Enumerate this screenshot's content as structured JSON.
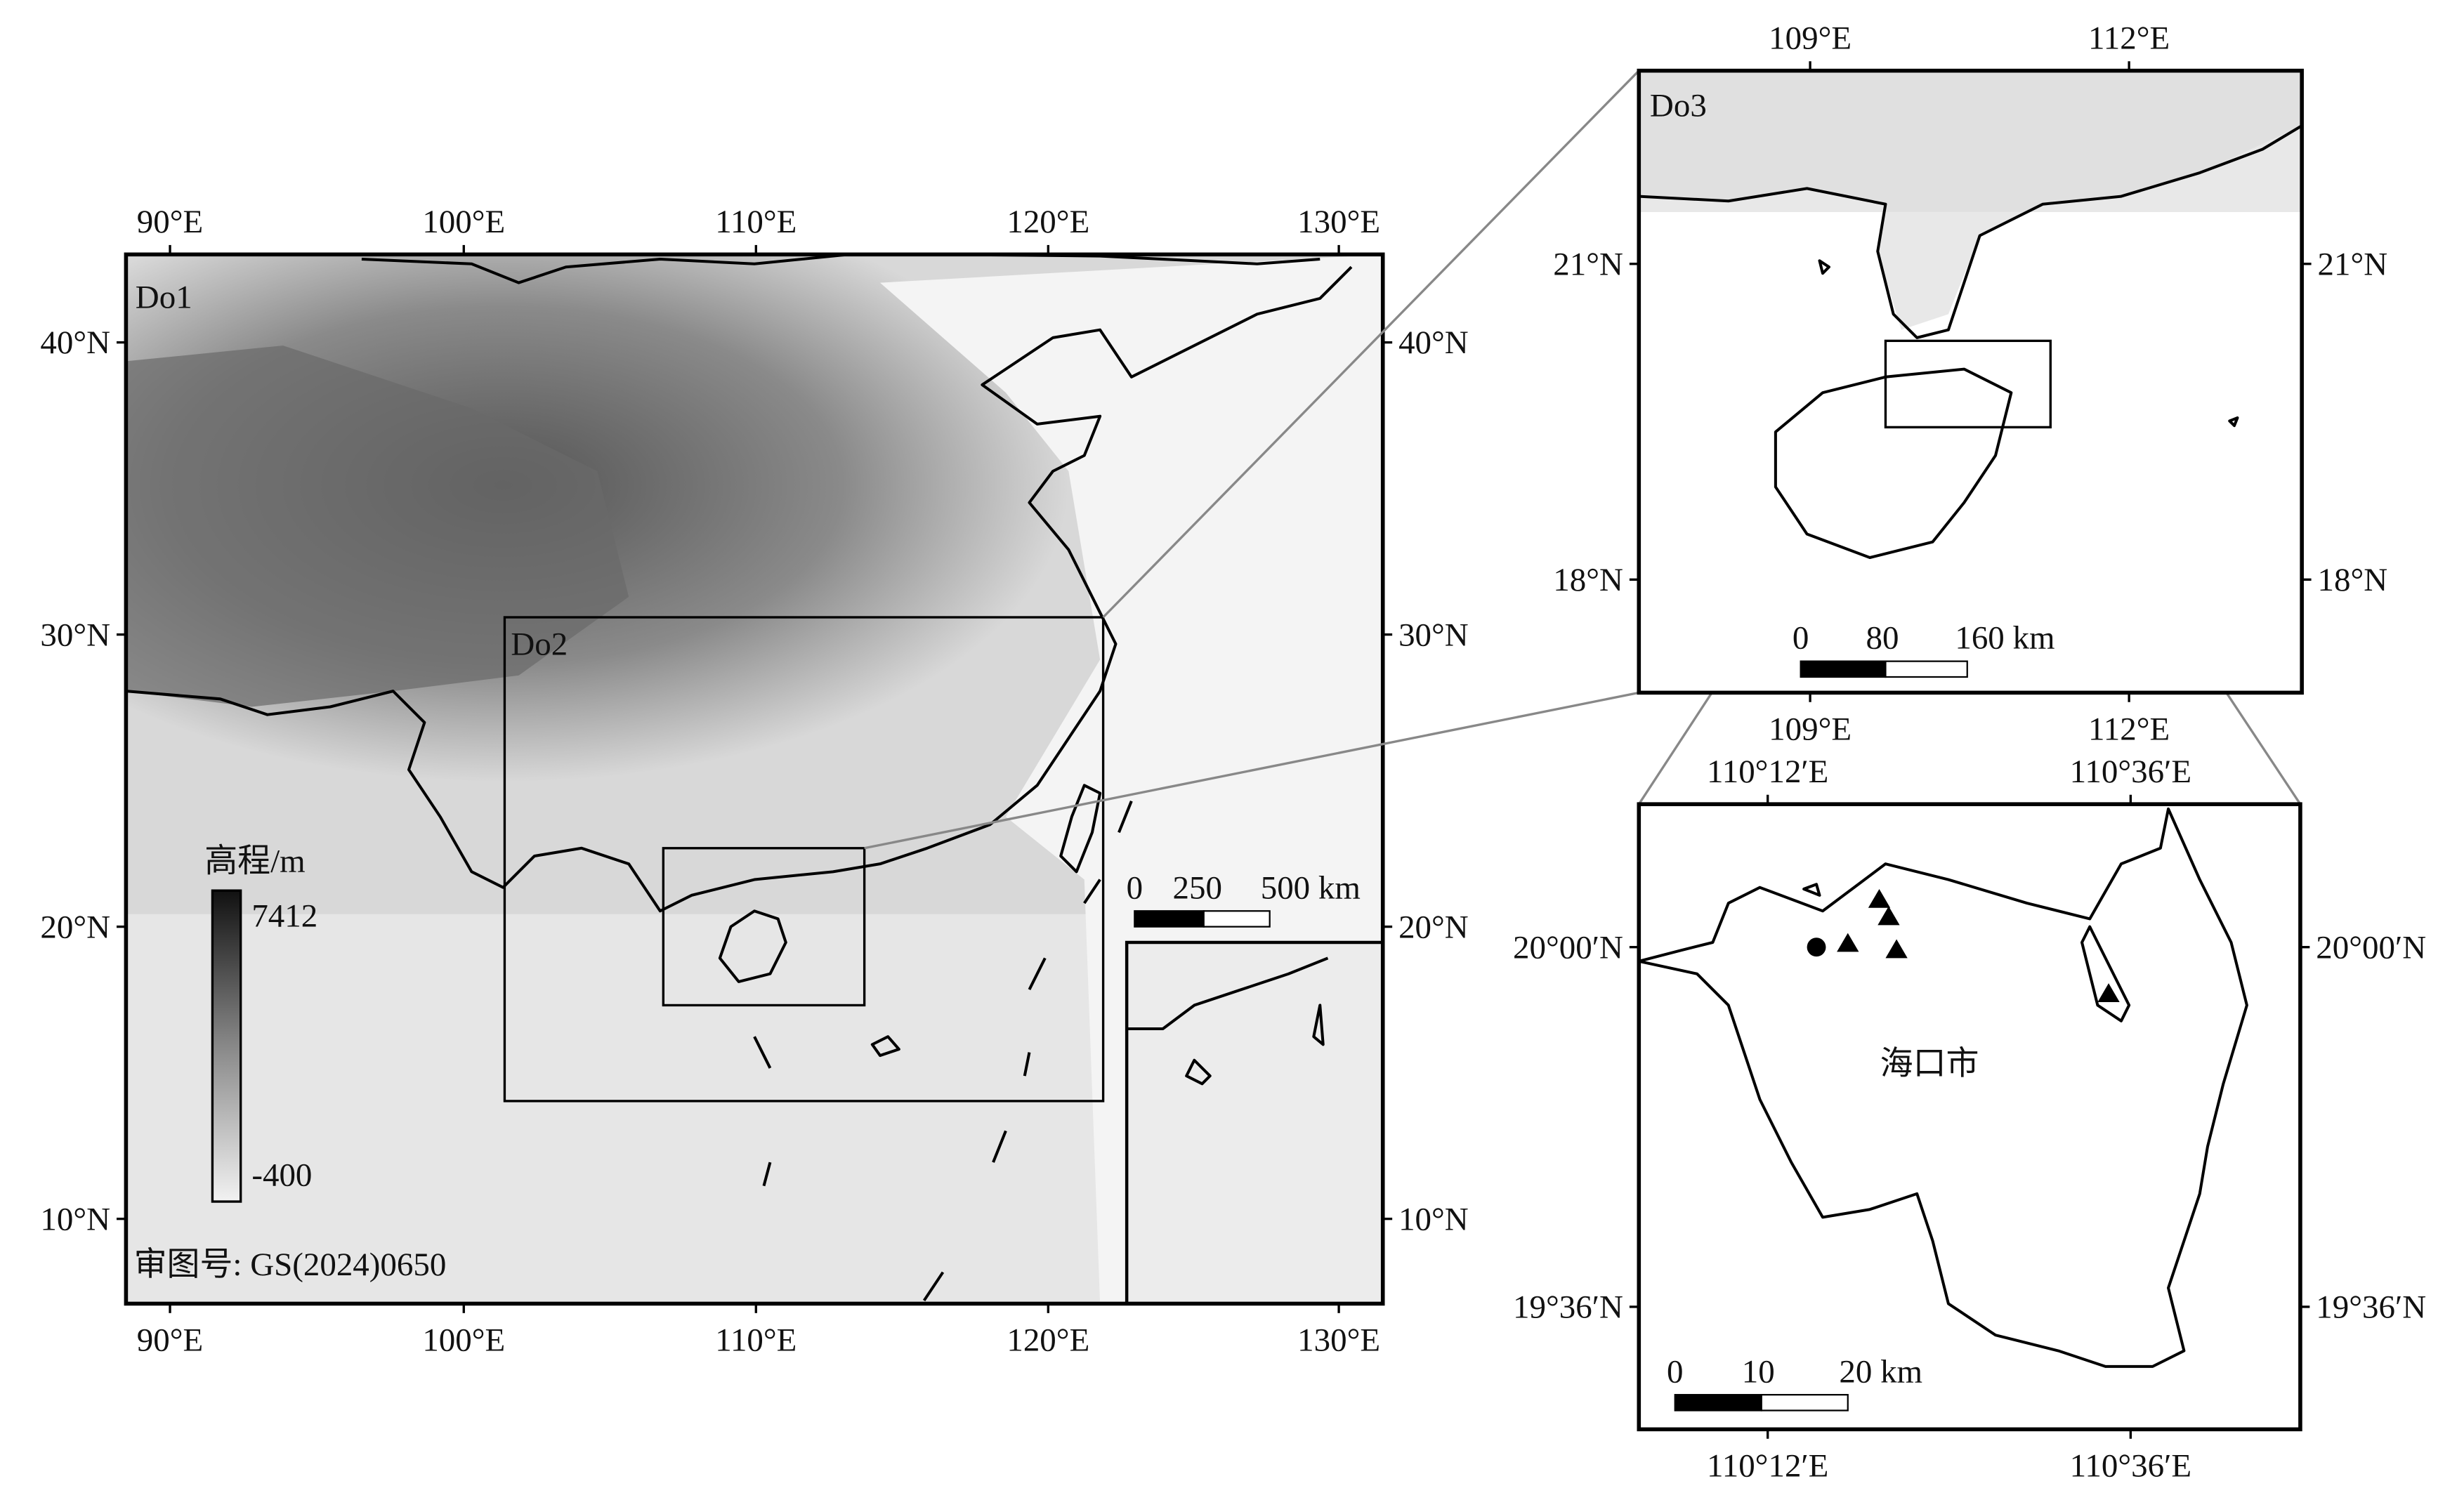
{
  "do1": {
    "label": "Do1",
    "inset_label": "Do2",
    "top_ticks": [
      "90°E",
      "100°E",
      "110°E",
      "120°E",
      "130°E"
    ],
    "bottom_ticks": [
      "90°E",
      "100°E",
      "110°E",
      "120°E",
      "130°E"
    ],
    "left_ticks": [
      "40°N",
      "30°N",
      "20°N",
      "10°N"
    ],
    "right_ticks": [
      "40°N",
      "30°N",
      "20°N",
      "10°N"
    ],
    "legend": {
      "title": "高程/m",
      "max": "7412",
      "min": "-400"
    },
    "scale_bar": [
      "0",
      "250",
      "500 km"
    ],
    "approval": "审图号: GS(2024)0650"
  },
  "do3": {
    "label": "Do3",
    "top_ticks": [
      "109°E",
      "112°E"
    ],
    "bottom_ticks": [
      "109°E",
      "112°E"
    ],
    "left_ticks": [
      "21°N",
      "18°N"
    ],
    "right_ticks": [
      "21°N",
      "18°N"
    ],
    "scale_bar": [
      "0",
      "80",
      "160 km"
    ]
  },
  "do4": {
    "top_ticks": [
      "110°12′E",
      "110°36′E"
    ],
    "bottom_ticks": [
      "110°12′E",
      "110°36′E"
    ],
    "left_ticks": [
      "20°00′N",
      "19°36′N"
    ],
    "right_ticks": [
      "20°00′N",
      "19°36′N"
    ],
    "city": "海口市",
    "scale_bar": [
      "0",
      "10",
      "20 km"
    ]
  }
}
